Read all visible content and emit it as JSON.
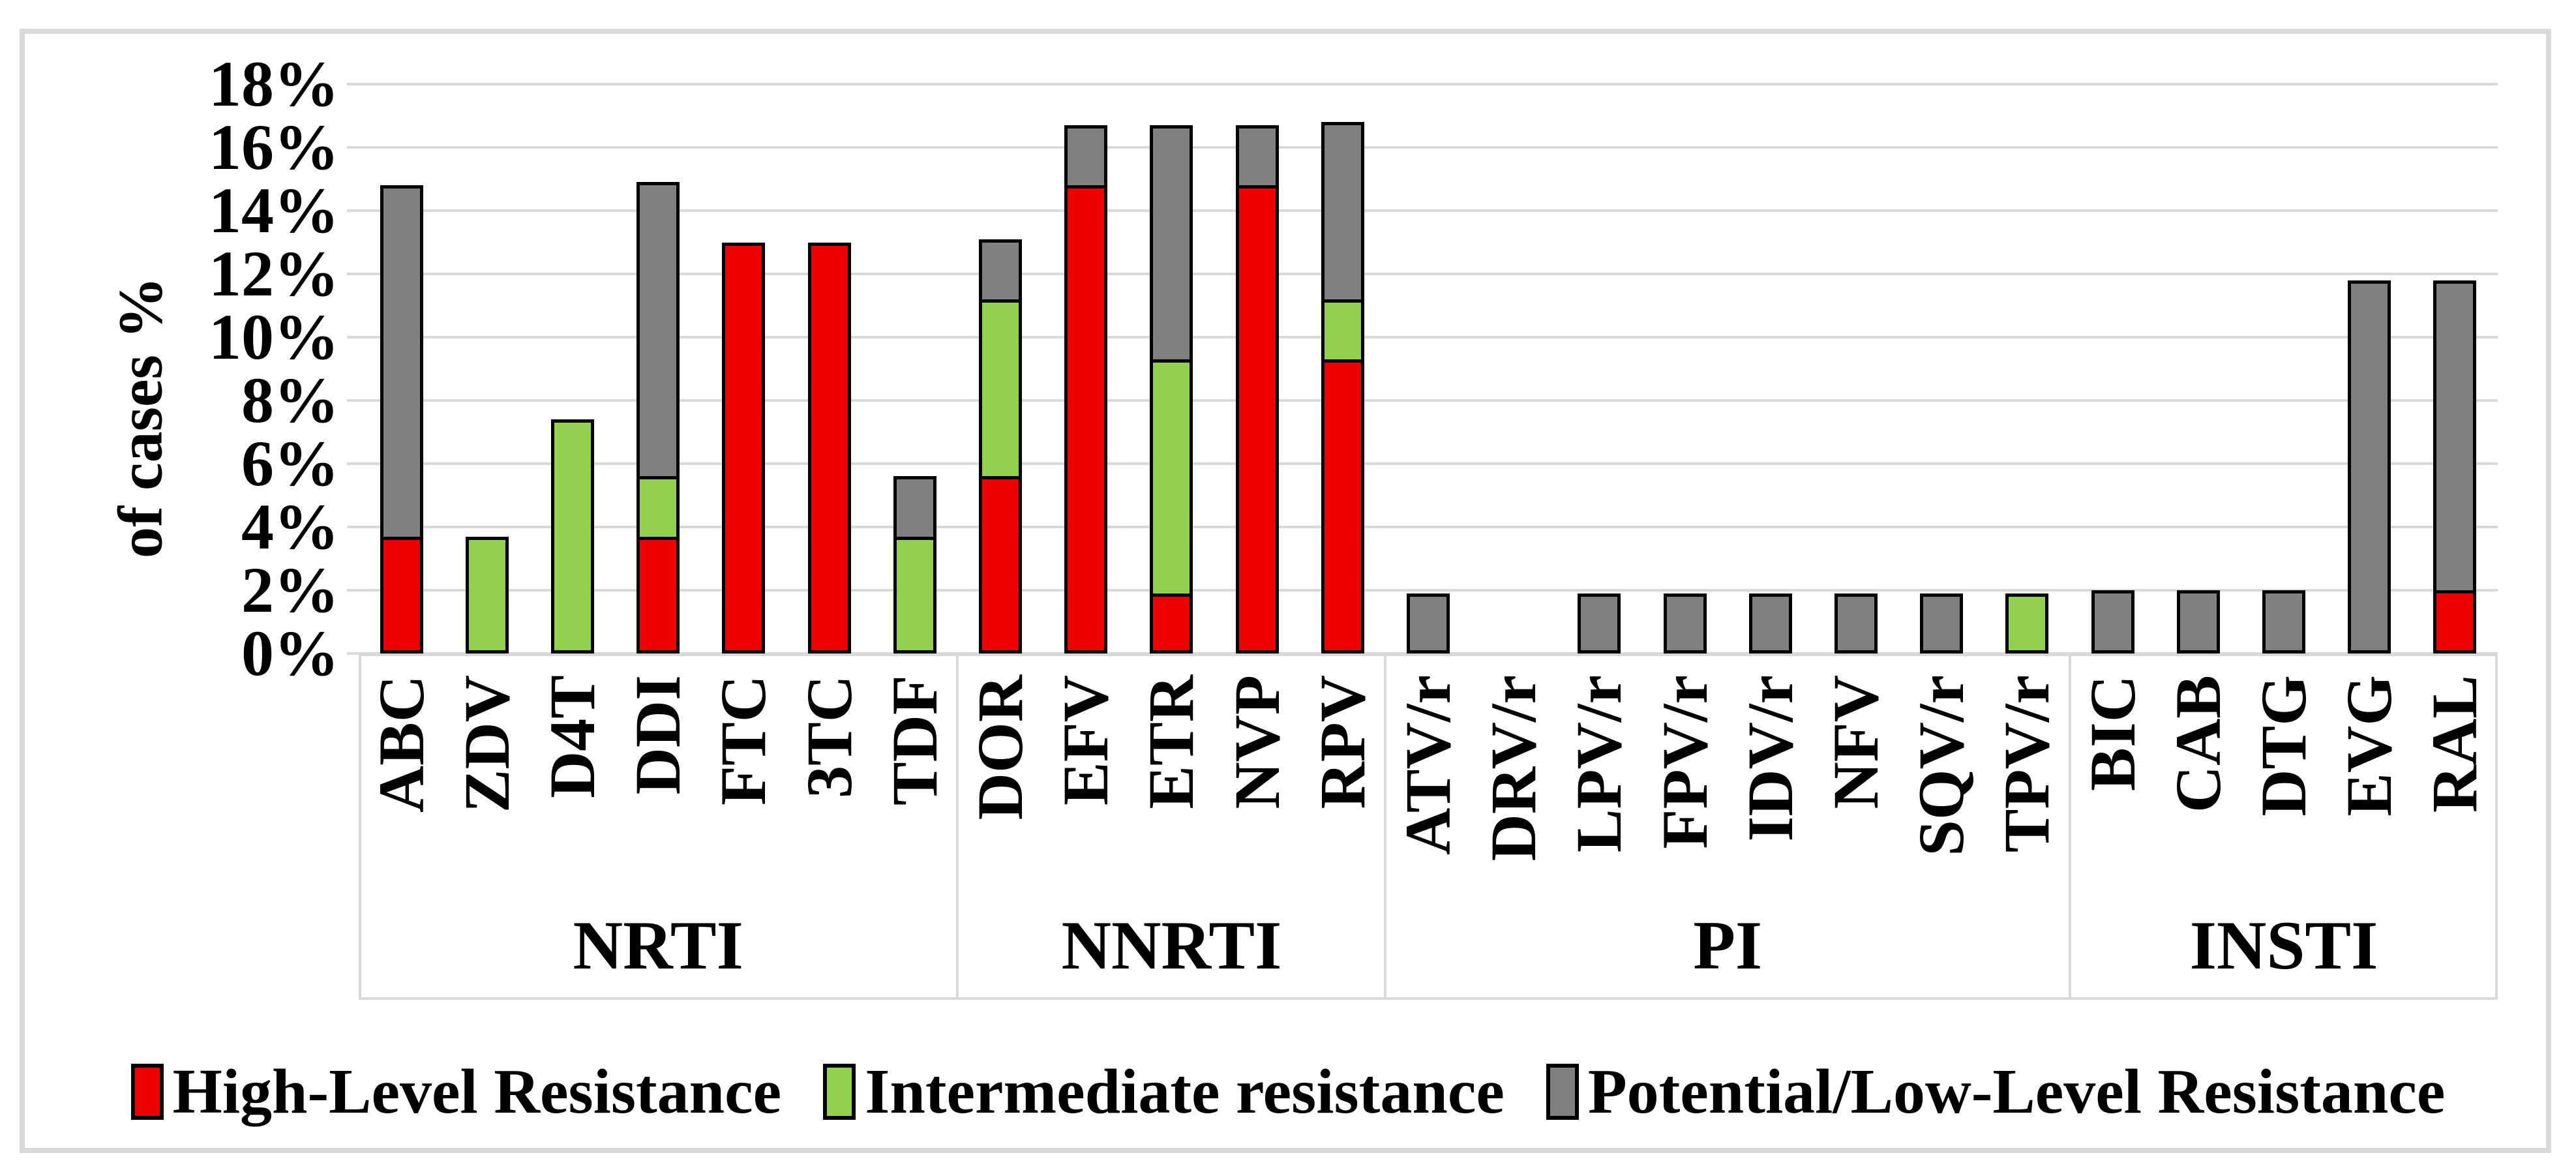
{
  "y_axis": {
    "title": "of cases %",
    "tick_labels": [
      "0%",
      "2%",
      "4%",
      "6%",
      "8%",
      "10%",
      "12%",
      "14%",
      "16%",
      "18%"
    ],
    "tick_values": [
      0,
      2,
      4,
      6,
      8,
      10,
      12,
      14,
      16,
      18
    ]
  },
  "legend": {
    "items": [
      {
        "key": "high",
        "label": "High-Level Resistance",
        "color": "#ee0000"
      },
      {
        "key": "intermediate",
        "label": "Intermediate resistance",
        "color": "#92d050"
      },
      {
        "key": "low",
        "label": "Potential/Low-Level Resistance",
        "color": "#808080"
      }
    ]
  },
  "colors": {
    "high": "#ee0000",
    "intermediate": "#92d050",
    "low": "#808080",
    "bar_border": "#000000",
    "gridline": "#d9d9d9",
    "frame": "#d9d9d9"
  },
  "chart_data": {
    "type": "bar",
    "stacked": true,
    "title": "",
    "xlabel": "",
    "ylabel": "of cases %",
    "ylim": [
      0,
      18
    ],
    "ytick_step": 2,
    "grid": true,
    "legend_position": "bottom",
    "segment_order": [
      "high",
      "intermediate",
      "low"
    ],
    "series_names": {
      "high": "High-Level Resistance",
      "intermediate": "Intermediate resistance",
      "low": "Potential/Low-Level Resistance"
    },
    "groups": [
      {
        "label": "NRTI",
        "drug_count": 7
      },
      {
        "label": "NNRTI",
        "drug_count": 5
      },
      {
        "label": "PI",
        "drug_count": 8
      },
      {
        "label": "INSTI",
        "drug_count": 5
      }
    ],
    "bars": [
      {
        "drug": "ABC",
        "group": "NRTI",
        "high": 3.7,
        "intermediate": 0,
        "low": 11.1
      },
      {
        "drug": "ZDV",
        "group": "NRTI",
        "high": 0,
        "intermediate": 3.7,
        "low": 0
      },
      {
        "drug": "D4T",
        "group": "NRTI",
        "high": 0,
        "intermediate": 7.4,
        "low": 0
      },
      {
        "drug": "DDI",
        "group": "NRTI",
        "high": 3.7,
        "intermediate": 1.9,
        "low": 9.3
      },
      {
        "drug": "FTC",
        "group": "NRTI",
        "high": 13.0,
        "intermediate": 0,
        "low": 0
      },
      {
        "drug": "3TC",
        "group": "NRTI",
        "high": 13.0,
        "intermediate": 0,
        "low": 0
      },
      {
        "drug": "TDF",
        "group": "NRTI",
        "high": 0,
        "intermediate": 3.7,
        "low": 1.9
      },
      {
        "drug": "DOR",
        "group": "NNRTI",
        "high": 5.6,
        "intermediate": 5.6,
        "low": 1.9
      },
      {
        "drug": "EFV",
        "group": "NNRTI",
        "high": 14.8,
        "intermediate": 0,
        "low": 1.9
      },
      {
        "drug": "ETR",
        "group": "NNRTI",
        "high": 1.9,
        "intermediate": 7.4,
        "low": 7.4
      },
      {
        "drug": "NVP",
        "group": "NNRTI",
        "high": 14.8,
        "intermediate": 0,
        "low": 1.9
      },
      {
        "drug": "RPV",
        "group": "NNRTI",
        "high": 9.3,
        "intermediate": 1.9,
        "low": 5.6
      },
      {
        "drug": "ATV/r",
        "group": "PI",
        "high": 0,
        "intermediate": 0,
        "low": 1.9
      },
      {
        "drug": "DRV/r",
        "group": "PI",
        "high": 0,
        "intermediate": 0,
        "low": 0
      },
      {
        "drug": "LPV/r",
        "group": "PI",
        "high": 0,
        "intermediate": 0,
        "low": 1.9
      },
      {
        "drug": "FPV/r",
        "group": "PI",
        "high": 0,
        "intermediate": 0,
        "low": 1.9
      },
      {
        "drug": "IDV/r",
        "group": "PI",
        "high": 0,
        "intermediate": 0,
        "low": 1.9
      },
      {
        "drug": "NFV",
        "group": "PI",
        "high": 0,
        "intermediate": 0,
        "low": 1.9
      },
      {
        "drug": "SQV/r",
        "group": "PI",
        "high": 0,
        "intermediate": 0,
        "low": 1.9
      },
      {
        "drug": "TPV/r",
        "group": "PI",
        "high": 0,
        "intermediate": 1.9,
        "low": 0
      },
      {
        "drug": "BIC",
        "group": "INSTI",
        "high": 0,
        "intermediate": 0,
        "low": 2.0
      },
      {
        "drug": "CAB",
        "group": "INSTI",
        "high": 0,
        "intermediate": 0,
        "low": 2.0
      },
      {
        "drug": "DTG",
        "group": "INSTI",
        "high": 0,
        "intermediate": 0,
        "low": 2.0
      },
      {
        "drug": "EVG",
        "group": "INSTI",
        "high": 0,
        "intermediate": 0,
        "low": 11.8
      },
      {
        "drug": "RAL",
        "group": "INSTI",
        "high": 2.0,
        "intermediate": 0,
        "low": 9.8
      }
    ]
  }
}
